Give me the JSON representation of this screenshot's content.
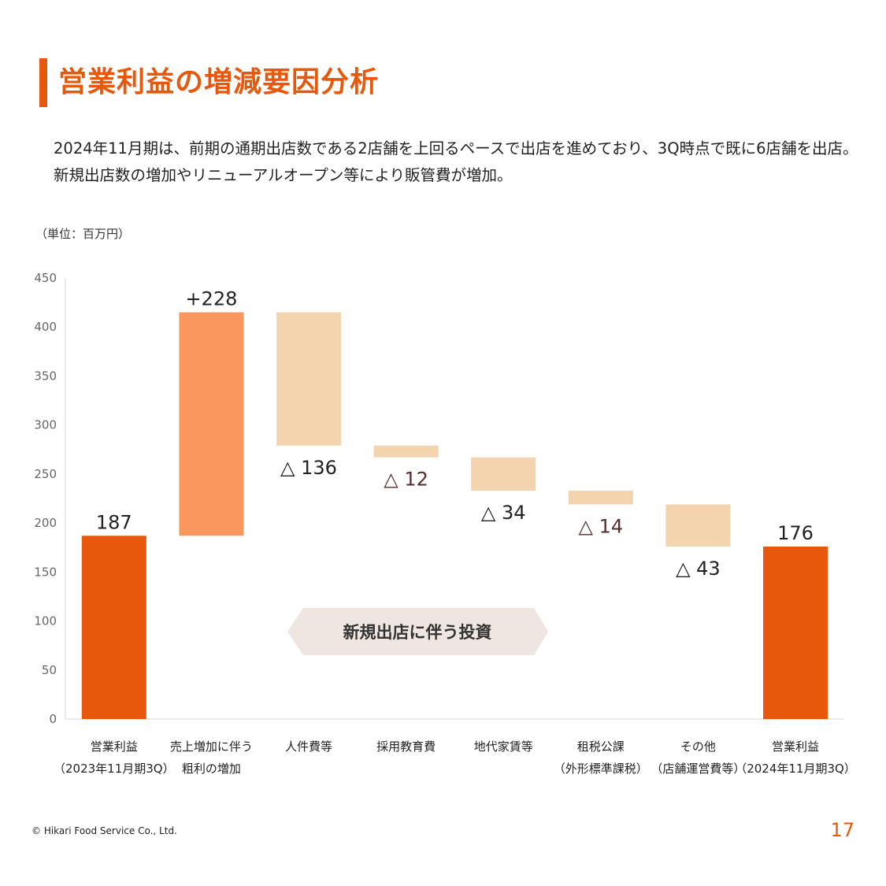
{
  "header": {
    "title": "営業利益の増減要因分析"
  },
  "description": {
    "line1": "2024年11月期は、前期の通期出店数である2店舗を上回るペースで出店を進めており、3Q時点で既に6店舗を出店。",
    "line2": "新規出店数の増加やリニューアルオープン等により販管費が増加。"
  },
  "unit_label": "（単位：百万円）",
  "banner": {
    "label": "新規出店に伴う投資"
  },
  "footer": {
    "copyright": "© Hikari Food Service Co., Ltd.",
    "page_number": "17"
  },
  "colors": {
    "total": "#e8580c",
    "increase": "#f9975e",
    "decrease": "#f4d4ae",
    "banner": "#efe5e1",
    "accent": "#e8580c"
  },
  "chart_data": {
    "type": "bar",
    "variant": "waterfall",
    "ylim": [
      0,
      450
    ],
    "yticks": [
      0,
      50,
      100,
      150,
      200,
      250,
      300,
      350,
      400,
      450
    ],
    "grid": false,
    "bars": [
      {
        "category_lines": [
          "営業利益",
          "（2023年11月期3Q）"
        ],
        "kind": "total",
        "start": 0,
        "end": 187,
        "label": "187"
      },
      {
        "category_lines": [
          "売上増加に伴う",
          "粗利の増加"
        ],
        "kind": "increase",
        "start": 187,
        "end": 415,
        "label": "+228"
      },
      {
        "category_lines": [
          "人件費等"
        ],
        "kind": "decrease",
        "start": 415,
        "end": 279,
        "label": "△ 136"
      },
      {
        "category_lines": [
          "採用教育費"
        ],
        "kind": "decrease",
        "start": 279,
        "end": 267,
        "label": "△ 12"
      },
      {
        "category_lines": [
          "地代家賃等"
        ],
        "kind": "decrease",
        "start": 267,
        "end": 233,
        "label": "△ 34"
      },
      {
        "category_lines": [
          "租税公課",
          "（外形標準課税）"
        ],
        "kind": "decrease",
        "start": 233,
        "end": 219,
        "label": "△ 14"
      },
      {
        "category_lines": [
          "その他",
          "（店舗運営費等）"
        ],
        "kind": "decrease",
        "start": 219,
        "end": 176,
        "label": "△ 43"
      },
      {
        "category_lines": [
          "営業利益",
          "（2024年11月期3Q）"
        ],
        "kind": "total",
        "start": 0,
        "end": 176,
        "label": "176"
      }
    ]
  }
}
